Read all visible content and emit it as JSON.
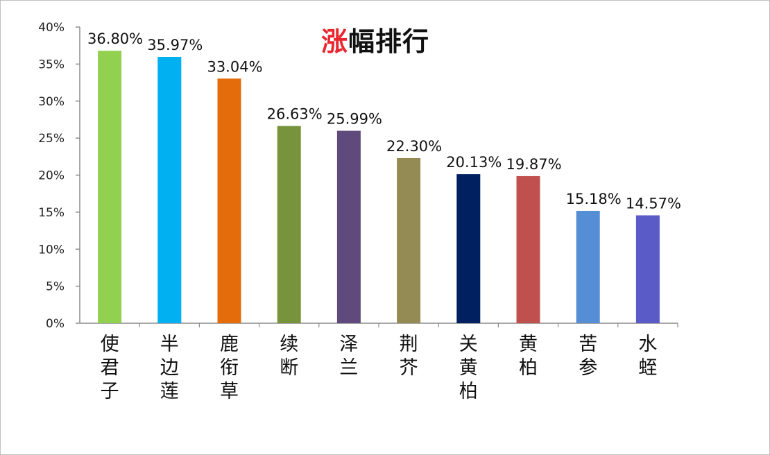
{
  "chart_data": {
    "type": "bar",
    "title": "涨幅排行",
    "title_highlight_color": "#e8262d",
    "categories": [
      "使君子",
      "半边莲",
      "鹿衔草",
      "续断",
      "泽兰",
      "荆芥",
      "关黄柏",
      "黄柏",
      "苦参",
      "水蛭"
    ],
    "values": [
      36.8,
      35.97,
      33.04,
      26.63,
      25.99,
      22.3,
      20.13,
      19.87,
      15.18,
      14.57
    ],
    "data_labels": [
      "36.80%",
      "35.97%",
      "33.04%",
      "26.63%",
      "25.99%",
      "22.30%",
      "20.13%",
      "19.87%",
      "15.18%",
      "14.57%"
    ],
    "bar_colors": [
      "#92d050",
      "#00b0f0",
      "#e46c0a",
      "#77933c",
      "#604a7b",
      "#948a54",
      "#002060",
      "#c0504d",
      "#558ed5",
      "#5b5bc8"
    ],
    "y_ticks": [
      "0%",
      "5%",
      "10%",
      "15%",
      "20%",
      "25%",
      "30%",
      "35%",
      "40%"
    ],
    "ylim": [
      0,
      40
    ],
    "xlabel": "",
    "ylabel": "",
    "grid": false
  }
}
